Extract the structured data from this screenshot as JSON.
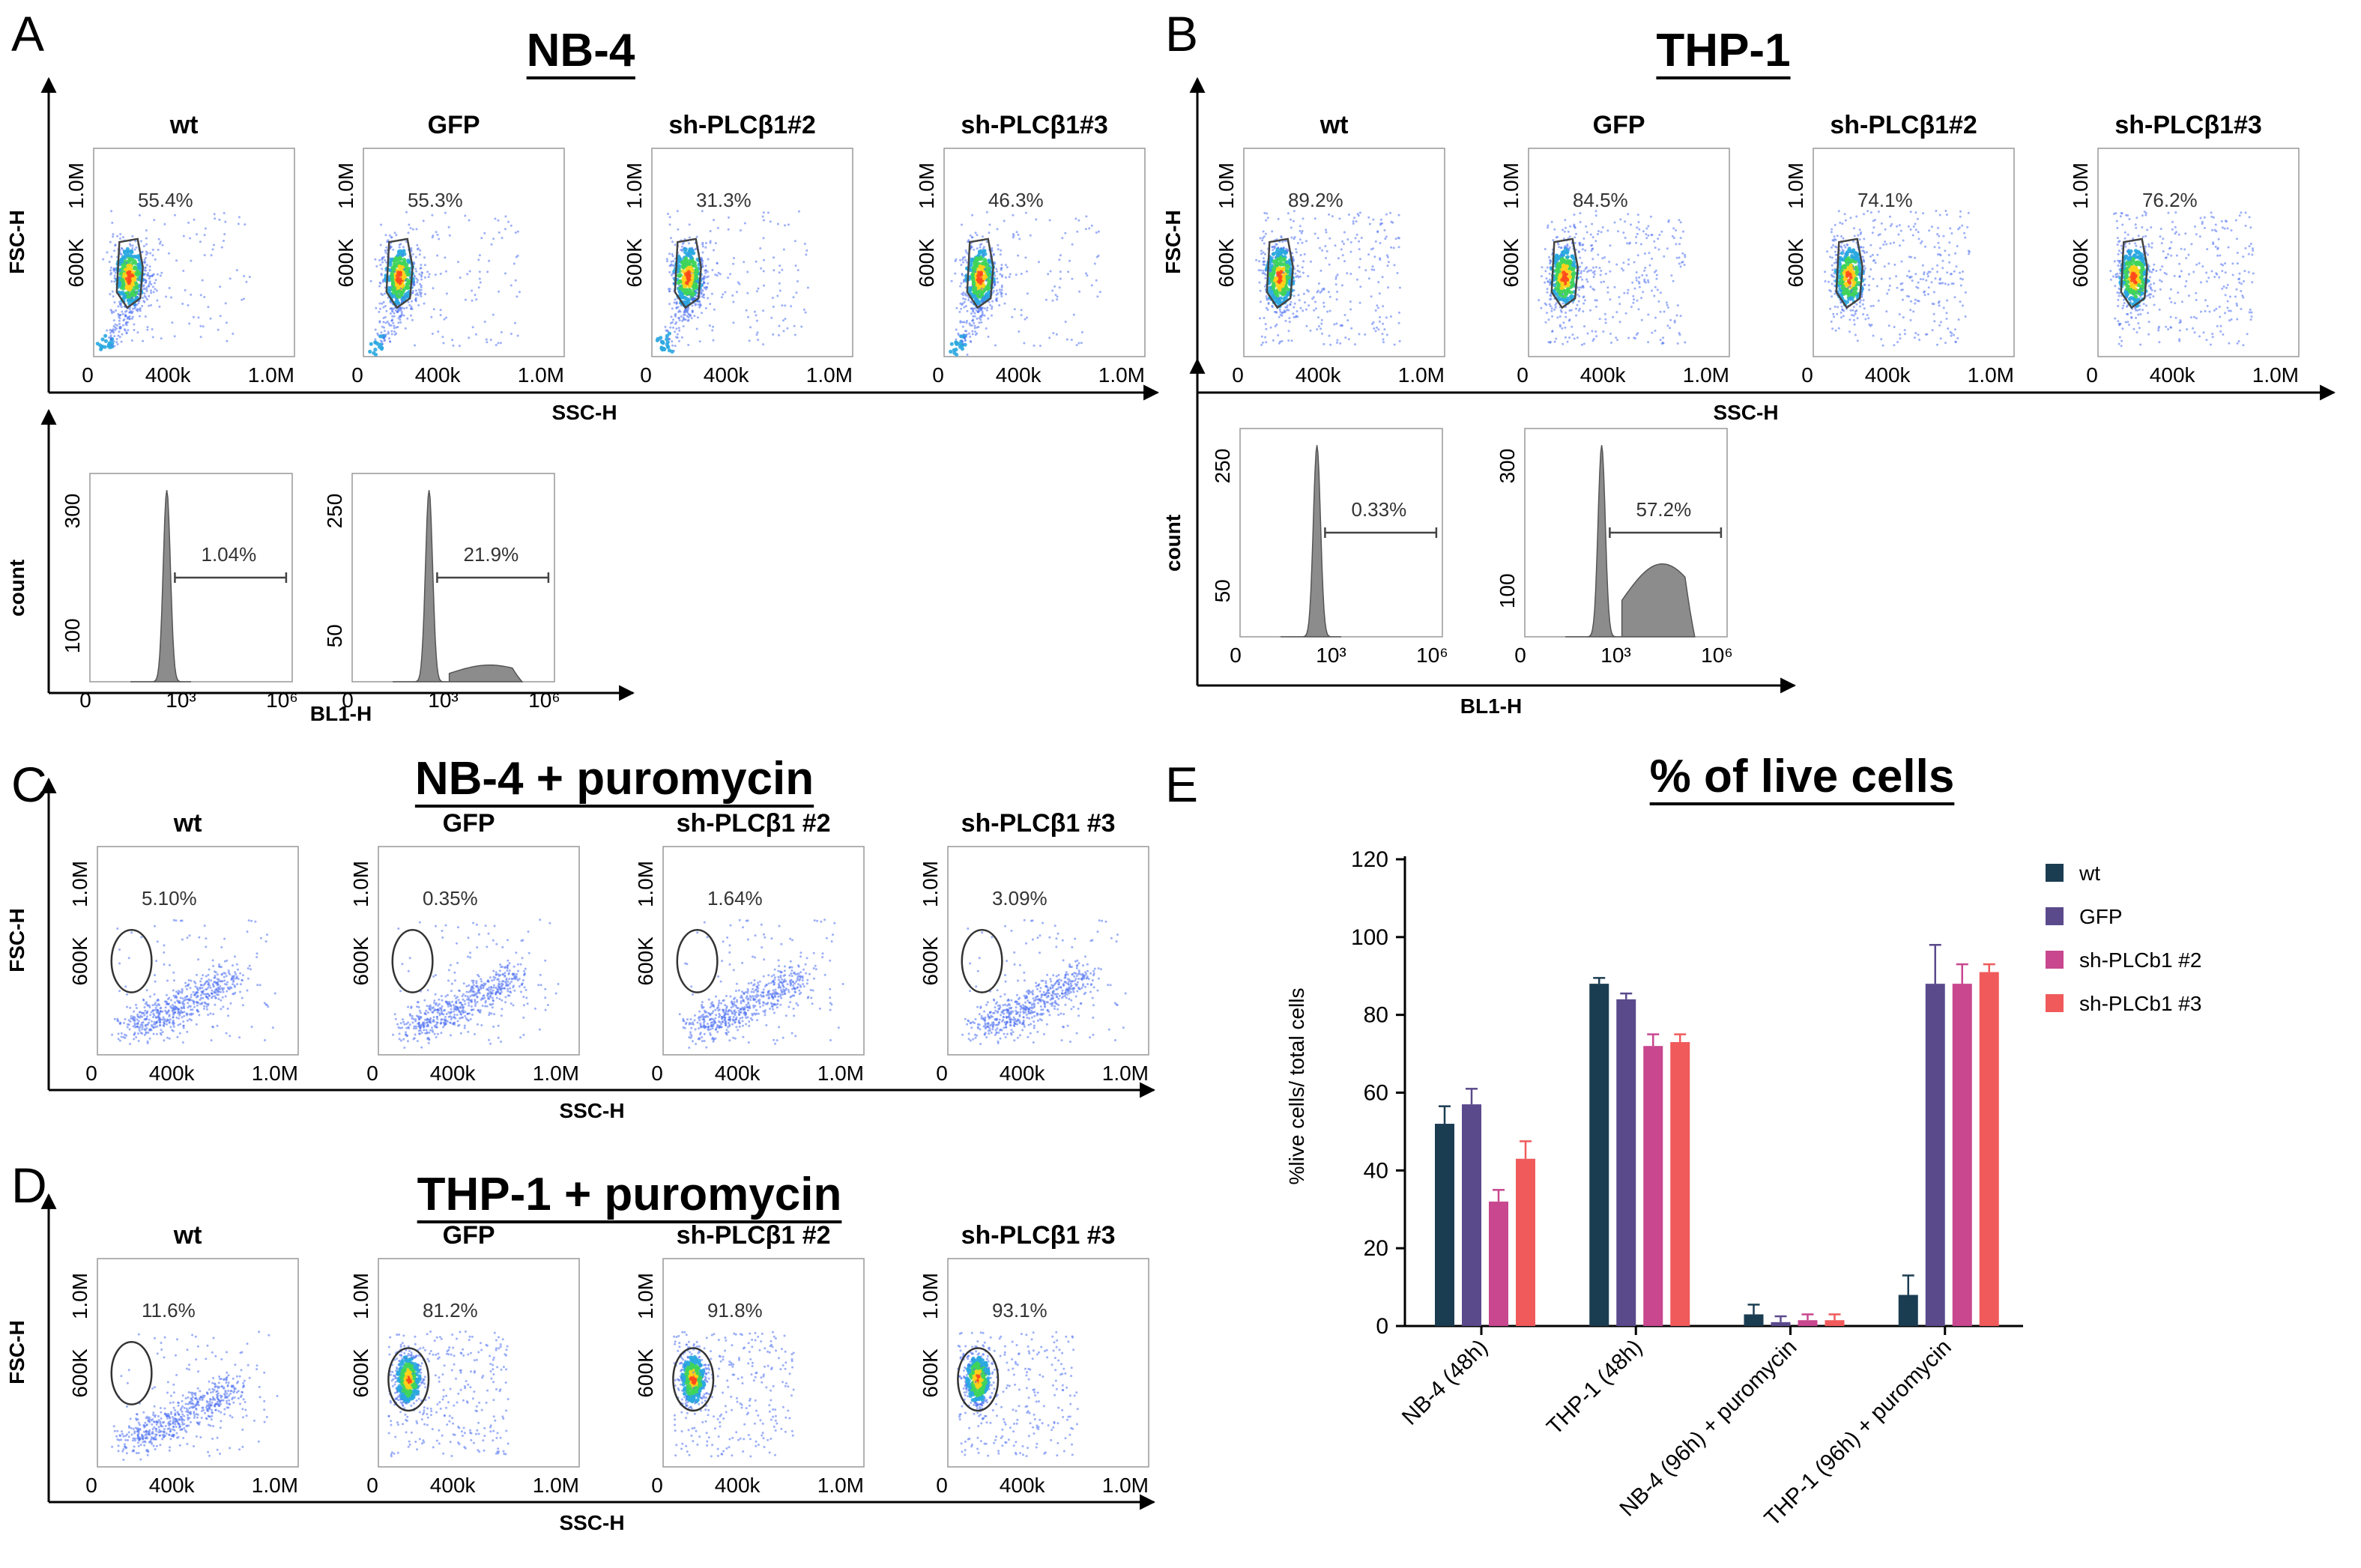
{
  "panel_labels": {
    "A": "A",
    "B": "B",
    "C": "C",
    "D": "D",
    "E": "E"
  },
  "titles": {
    "A": "NB-4",
    "B": "THP-1",
    "C": "NB-4 + puromycin",
    "D": "THP-1 + puromycin",
    "E": "% of live cells"
  },
  "axis_labels": {
    "fsc": "FSC-H",
    "ssc": "SSC-H",
    "count": "count",
    "bl1": "BL1-H"
  },
  "scatter_ticks": {
    "y": [
      "600K",
      "1.0M"
    ],
    "x": [
      "0",
      "400k",
      "1.0M"
    ]
  },
  "hist_ticks": {
    "x": [
      "0",
      "10³",
      "10⁶"
    ]
  },
  "flow_panels": {
    "A": [
      {
        "name": "wt",
        "pct": "55.4%"
      },
      {
        "name": "GFP",
        "pct": "55.3%"
      },
      {
        "name": "sh-PLCβ1#2",
        "pct": "31.3%"
      },
      {
        "name": "sh-PLCβ1#3",
        "pct": "46.3%"
      }
    ],
    "B": [
      {
        "name": "wt",
        "pct": "89.2%"
      },
      {
        "name": "GFP",
        "pct": "84.5%"
      },
      {
        "name": "sh-PLCβ1#2",
        "pct": "74.1%"
      },
      {
        "name": "sh-PLCβ1#3",
        "pct": "76.2%"
      }
    ],
    "C": [
      {
        "name": "wt",
        "pct": "5.10%"
      },
      {
        "name": "GFP",
        "pct": "0.35%"
      },
      {
        "name": "sh-PLCβ1 #2",
        "pct": "1.64%"
      },
      {
        "name": "sh-PLCβ1 #3",
        "pct": "3.09%"
      }
    ],
    "D": [
      {
        "name": "wt",
        "pct": "11.6%"
      },
      {
        "name": "GFP",
        "pct": "81.2%"
      },
      {
        "name": "sh-PLCβ1 #2",
        "pct": "91.8%"
      },
      {
        "name": "sh-PLCβ1 #3",
        "pct": "93.1%"
      }
    ]
  },
  "histograms": {
    "A": [
      {
        "pct": "1.04%",
        "yticks": [
          "100",
          "300"
        ]
      },
      {
        "pct": "21.9%",
        "yticks": [
          "50",
          "250"
        ]
      }
    ],
    "B": [
      {
        "pct": "0.33%",
        "yticks": [
          "50",
          "250"
        ]
      },
      {
        "pct": "57.2%",
        "yticks": [
          "100",
          "300"
        ]
      }
    ]
  },
  "colors": {
    "wt": "#1b3d52",
    "GFP": "#5a4a8c",
    "sh1": "#c8478f",
    "sh2": "#f05a5b"
  },
  "chart_data": {
    "type": "bar",
    "title": "% of live cells",
    "ylabel": "%live cells/ total cells",
    "xlabel": "",
    "ylim": [
      0,
      120
    ],
    "yticks": [
      0,
      20,
      40,
      60,
      80,
      100,
      120
    ],
    "categories": [
      "NB-4 (48h)",
      "THP-1 (48h)",
      "NB-4 (96h) + puromycin",
      "THP-1 (96h) + puromycin"
    ],
    "series": [
      {
        "name": "wt",
        "color": "#1b3d52",
        "values": [
          52,
          88,
          3,
          8
        ],
        "errors": [
          4.5,
          1.5,
          2.5,
          5
        ]
      },
      {
        "name": "GFP",
        "color": "#5a4a8c",
        "values": [
          57,
          84,
          1,
          88
        ],
        "errors": [
          4,
          1.5,
          1.5,
          10
        ]
      },
      {
        "name": "sh-PLCb1 #2",
        "color": "#c8478f",
        "values": [
          32,
          72,
          1.5,
          88
        ],
        "errors": [
          3,
          3,
          1.5,
          5
        ]
      },
      {
        "name": "sh-PLCb1 #3",
        "color": "#f05a5b",
        "values": [
          43,
          73,
          1.5,
          91
        ],
        "errors": [
          4.5,
          2,
          1.5,
          2
        ]
      }
    ]
  }
}
